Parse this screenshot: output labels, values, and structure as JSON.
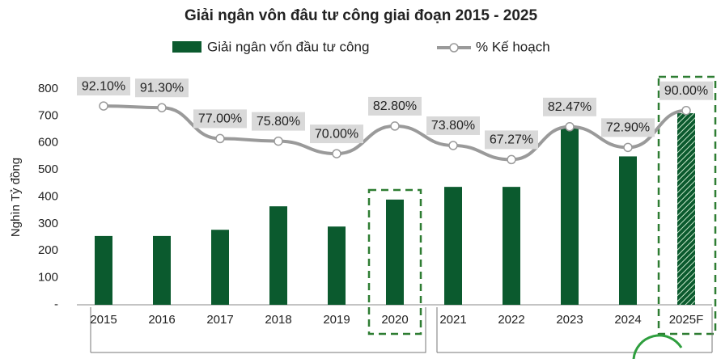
{
  "chart_data": {
    "type": "bar",
    "title": "Giải ngân vôn đâu tư công giai đoạn 2015 - 2025",
    "y_label": "Nghìn Tỷ đồng",
    "categories": [
      "2015",
      "2016",
      "2017",
      "2018",
      "2019",
      "2020",
      "2021",
      "2022",
      "2023",
      "2024",
      "2025F"
    ],
    "series": [
      {
        "name": "Giải ngân vốn đầu tư công",
        "type": "bar",
        "color": "#0b5a2e",
        "values": [
          255,
          255,
          278,
          365,
          290,
          390,
          437,
          437,
          660,
          550,
          710
        ]
      },
      {
        "name": "% Kế hoạch",
        "type": "line",
        "axis": "y2",
        "color": "#9a9a9a",
        "values": [
          92.1,
          91.3,
          77.0,
          75.8,
          70.0,
          82.8,
          73.8,
          67.27,
          82.47,
          72.9,
          90.0
        ],
        "value_labels": [
          "92.10%",
          "91.30%",
          "77.00%",
          "75.80%",
          "70.00%",
          "82.80%",
          "73.80%",
          "67.27%",
          "82.47%",
          "72.90%",
          "90.00%"
        ]
      }
    ],
    "ylim": [
      0,
      800
    ],
    "yticks": [
      {
        "value": 0,
        "label": "-"
      },
      100,
      200,
      300,
      400,
      500,
      600,
      700,
      800
    ],
    "y2lim": [
      0,
      100
    ],
    "legend": "top"
  }
}
